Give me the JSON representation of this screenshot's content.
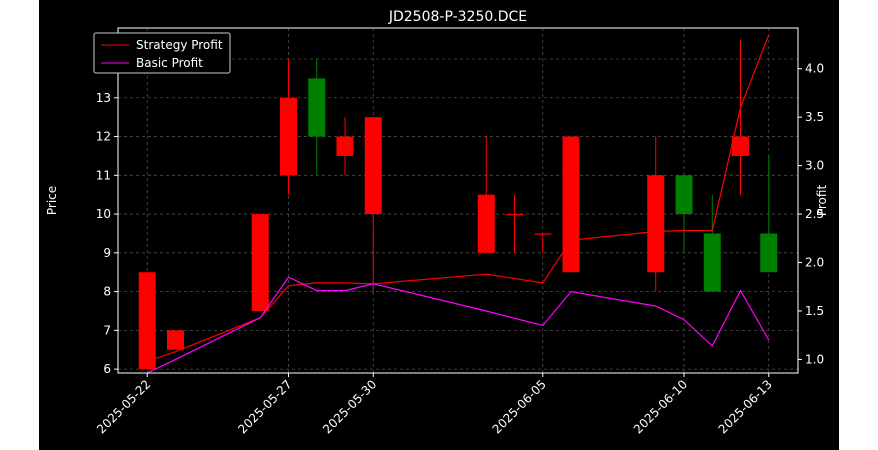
{
  "chart_data": {
    "type": "candlestick",
    "title": "JD2508-P-3250.DCE",
    "ylabel_left": "Price",
    "ylabel_right": "Profit",
    "x_tick_labels": [
      "2025-05-22",
      "2025-05-27",
      "2025-05-30",
      "2025-06-05",
      "2025-06-10",
      "2025-06-13"
    ],
    "x_tick_dates": [
      "2025-05-22",
      "2025-05-27",
      "2025-05-30",
      "2025-06-05",
      "2025-06-10",
      "2025-06-13"
    ],
    "left_y_ticks": [
      6,
      7,
      8,
      9,
      10,
      11,
      12,
      13,
      14
    ],
    "right_y_ticks": [
      "1.0",
      "1.5",
      "2.0",
      "2.5",
      "3.0",
      "3.5",
      "4.0"
    ],
    "ylim_left": [
      5.9,
      14.8
    ],
    "ylim_right": [
      0.86,
      4.42
    ],
    "grid": true,
    "legend_position": "top-left",
    "colors": {
      "up": "#008000",
      "down": "#ff0000",
      "strategy": "#ff0000",
      "basic": "#ff00ff",
      "background": "#000000",
      "grid": "#4d4d4d"
    },
    "candles": [
      {
        "date": "2025-05-22",
        "open": 8.5,
        "high": 8.5,
        "low": 6.0,
        "close": 6.0
      },
      {
        "date": "2025-05-23",
        "open": 7.0,
        "high": 7.0,
        "low": 6.5,
        "close": 6.5
      },
      {
        "date": "2025-05-26",
        "open": 10.0,
        "high": 10.0,
        "low": 7.5,
        "close": 7.5
      },
      {
        "date": "2025-05-27",
        "open": 13.0,
        "high": 14.0,
        "low": 10.5,
        "close": 11.0
      },
      {
        "date": "2025-05-28",
        "open": 12.0,
        "high": 14.0,
        "low": 11.0,
        "close": 13.5
      },
      {
        "date": "2025-05-29",
        "open": 12.0,
        "high": 12.5,
        "low": 11.0,
        "close": 11.5
      },
      {
        "date": "2025-05-30",
        "open": 12.5,
        "high": 12.5,
        "low": 8.0,
        "close": 10.0
      },
      {
        "date": "2025-06-03",
        "open": 10.5,
        "high": 12.0,
        "low": 9.0,
        "close": 9.0
      },
      {
        "date": "2025-06-04",
        "open": 10.0,
        "high": 10.5,
        "low": 9.0,
        "close": 10.0
      },
      {
        "date": "2025-06-05",
        "open": 9.5,
        "high": 9.5,
        "low": 9.0,
        "close": 9.5
      },
      {
        "date": "2025-06-06",
        "open": 12.0,
        "high": 12.0,
        "low": 8.5,
        "close": 8.5
      },
      {
        "date": "2025-06-09",
        "open": 11.0,
        "high": 12.0,
        "low": 8.0,
        "close": 8.5
      },
      {
        "date": "2025-06-10",
        "open": 10.0,
        "high": 11.0,
        "low": 9.0,
        "close": 11.0
      },
      {
        "date": "2025-06-11",
        "open": 8.0,
        "high": 10.5,
        "low": 8.0,
        "close": 9.5
      },
      {
        "date": "2025-06-12",
        "open": 12.0,
        "high": 14.5,
        "low": 10.5,
        "close": 11.5
      },
      {
        "date": "2025-06-13",
        "open": 8.5,
        "high": 11.5,
        "low": 8.5,
        "close": 9.5
      }
    ],
    "series": [
      {
        "name": "Strategy Profit",
        "axis": "right",
        "x": [
          "2025-05-22",
          "2025-05-23",
          "2025-05-26",
          "2025-05-27",
          "2025-05-28",
          "2025-05-29",
          "2025-05-30",
          "2025-06-03",
          "2025-06-05",
          "2025-06-06",
          "2025-06-09",
          "2025-06-10",
          "2025-06-11",
          "2025-06-12",
          "2025-06-13"
        ],
        "values": [
          0.98,
          1.08,
          1.43,
          1.76,
          1.79,
          1.79,
          1.78,
          1.88,
          1.79,
          2.23,
          2.32,
          2.33,
          2.33,
          3.6,
          4.35
        ]
      },
      {
        "name": "Basic Profit",
        "axis": "right",
        "x": [
          "2025-05-22",
          "2025-05-23",
          "2025-05-26",
          "2025-05-27",
          "2025-05-28",
          "2025-05-29",
          "2025-05-30",
          "2025-06-03",
          "2025-06-05",
          "2025-06-06",
          "2025-06-09",
          "2025-06-10",
          "2025-06-11",
          "2025-06-12",
          "2025-06-13"
        ],
        "values": [
          0.86,
          1.0,
          1.43,
          1.85,
          1.71,
          1.71,
          1.78,
          1.5,
          1.35,
          1.7,
          1.55,
          1.41,
          1.14,
          1.71,
          1.2
        ]
      }
    ]
  }
}
